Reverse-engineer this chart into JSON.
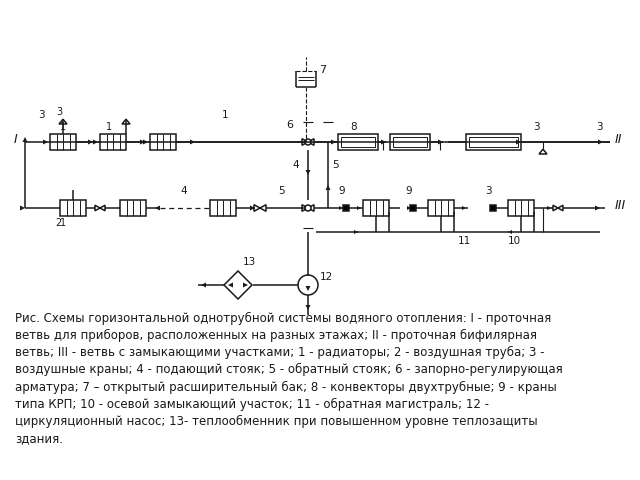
{
  "bg_color": "#ffffff",
  "caption_text": "Рис. Схемы горизонтальной однотрубной системы водяного отопления: I - проточная\nветвь для приборов, расположенных на разных этажах; II - проточная бифилярная\nветвь; III - ветвь с замыкающими участками; 1 - радиаторы; 2 - воздушная труба; 3 -\nвоздушные краны; 4 - подающий стояк; 5 - обратный стояк; 6 - запорно-регулирующая\nарматура; 7 – открытый расширительный бак; 8 - конвекторы двухтрубные; 9 - краны\nтипа КРП; 10 - осевой замыкающий участок; 11 - обратная магистраль; 12 -\nциркуляционный насос; 13- теплообменник при повышенном уровне теплозащиты\nздания.",
  "line_color": "#1a1a1a",
  "label_color": "#1a1a1a"
}
